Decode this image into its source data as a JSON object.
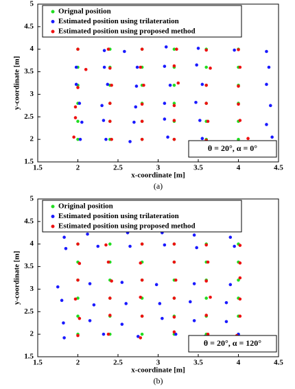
{
  "chart_data": [
    {
      "type": "scatter",
      "caption": "(a)",
      "x_label": "x-coordinate [m]",
      "y_label": "y-coordinate [m]",
      "annotation": "θ = 20°, α = 0°",
      "xlim": [
        1.5,
        4.5
      ],
      "ylim": [
        1.5,
        5
      ],
      "xticks": [
        1.5,
        2,
        2.5,
        3,
        3.5,
        4,
        4.5
      ],
      "yticks": [
        1.5,
        2,
        2.5,
        3,
        3.5,
        4,
        4.5,
        5
      ],
      "grid": false,
      "legend": "upper-left",
      "series": [
        {
          "name": "Orignal position",
          "color": "#22dd22",
          "x": [
            2,
            2.4,
            2.8,
            3.2,
            3.6,
            4,
            2,
            2.4,
            2.8,
            3.2,
            3.6,
            4,
            2,
            2.4,
            2.8,
            3.2,
            3.6,
            4,
            2,
            2.4,
            2.8,
            3.2,
            3.6,
            4,
            2,
            2.4,
            2.8,
            3.2,
            3.6,
            4,
            2,
            2.4,
            2.8,
            3.2,
            3.6,
            4
          ],
          "values": [
            4,
            4,
            4,
            4,
            4,
            4,
            3.6,
            3.6,
            3.6,
            3.6,
            3.6,
            3.6,
            3.2,
            3.2,
            3.2,
            3.2,
            3.2,
            3.2,
            2.8,
            2.8,
            2.8,
            2.8,
            2.8,
            2.8,
            2.4,
            2.4,
            2.4,
            2.4,
            2.4,
            2.4,
            2,
            2,
            2,
            2,
            2,
            2
          ]
        },
        {
          "name": "Estimated position using trilateration",
          "color": "#1a1aff",
          "x": [
            2.33,
            2.58,
            3.1,
            3.5,
            3.95,
            4.35,
            1.98,
            2.33,
            2.74,
            3.08,
            3.48,
            4.38,
            1.98,
            2.37,
            2.73,
            3.15,
            3.55,
            4.35,
            2.02,
            2.3,
            2.72,
            3.08,
            3.47,
            4.4,
            2.05,
            2.32,
            2.7,
            3.08,
            3.52,
            4.35,
            2.03,
            2.35,
            2.65,
            3.12,
            3.55,
            4.42
          ],
          "values": [
            3.97,
            3.95,
            4.05,
            4.02,
            3.98,
            3.95,
            3.6,
            3.6,
            3.6,
            3.62,
            3.65,
            3.6,
            3.22,
            3.22,
            3.18,
            3.2,
            3.22,
            3.22,
            2.8,
            2.75,
            2.72,
            2.8,
            2.82,
            2.75,
            2.38,
            2.42,
            2.38,
            2.45,
            2.42,
            2.33,
            2,
            2,
            1.95,
            2.05,
            2.02,
            2.05
          ]
        },
        {
          "name": "Estimated position using proposed method",
          "color": "#ee1111",
          "x": [
            2,
            2.38,
            2.8,
            3.23,
            3.6,
            4,
            2.1,
            2.4,
            2.78,
            3.2,
            3.65,
            4.02,
            2,
            2.42,
            2.82,
            3.25,
            3.6,
            4,
            1.97,
            2.4,
            2.8,
            3.2,
            3.6,
            4,
            1.97,
            2.4,
            2.8,
            3.2,
            3.62,
            4.02,
            1.95,
            2.42,
            2.8,
            3.2,
            3.6,
            4.12
          ],
          "values": [
            4,
            4,
            4,
            4,
            3.98,
            3.99,
            3.55,
            3.58,
            3.6,
            3.63,
            3.58,
            3.6,
            3.15,
            3.2,
            3.2,
            3.25,
            3.2,
            3.18,
            2.72,
            2.8,
            2.78,
            2.75,
            2.8,
            2.78,
            2.48,
            2.4,
            2.4,
            2.42,
            2.4,
            2.42,
            2.05,
            2,
            2,
            2,
            1.98,
            2.02
          ]
        }
      ]
    },
    {
      "type": "scatter",
      "caption": "(b)",
      "x_label": "x-coordinate [m]",
      "y_label": "y-coordinate [m]",
      "annotation": "θ = 20°, α = 120°",
      "xlim": [
        1.5,
        4.5
      ],
      "ylim": [
        1.5,
        5
      ],
      "xticks": [
        1.5,
        2,
        2.5,
        3,
        3.5,
        4,
        4.5
      ],
      "yticks": [
        1.5,
        2,
        2.5,
        3,
        3.5,
        4,
        4.5,
        5
      ],
      "grid": false,
      "legend": "upper-left",
      "series": [
        {
          "name": "Original position",
          "color": "#22dd22",
          "x": [
            2,
            2.4,
            2.8,
            3.2,
            3.6,
            4,
            2,
            2.4,
            2.8,
            3.2,
            3.6,
            4,
            2,
            2.4,
            2.8,
            3.2,
            3.6,
            4,
            2,
            2.4,
            2.8,
            3.2,
            3.6,
            4,
            2,
            2.4,
            2.8,
            3.2,
            3.6,
            4,
            2,
            2.4,
            2.8,
            3.2,
            3.6,
            4
          ],
          "values": [
            4,
            4,
            4,
            4,
            4,
            4,
            3.6,
            3.6,
            3.6,
            3.6,
            3.6,
            3.6,
            3.2,
            3.2,
            3.2,
            3.2,
            3.2,
            3.2,
            2.8,
            2.8,
            2.8,
            2.8,
            2.8,
            2.8,
            2.4,
            2.4,
            2.4,
            2.4,
            2.4,
            2.4,
            2,
            2,
            2,
            2,
            2,
            2
          ]
        },
        {
          "name": "Estimated position using trilateration",
          "color": "#1a1aff",
          "x": [
            1.83,
            2.12,
            2.62,
            3.05,
            3.45,
            3.9,
            1.85,
            2.25,
            2.65,
            3.08,
            3.48,
            3.95,
            1.75,
            2.15,
            2.55,
            2.98,
            3.45,
            3.9,
            1.8,
            2.2,
            2.6,
            3.02,
            3.4,
            3.85,
            1.82,
            2.15,
            2.55,
            3.05,
            3.45,
            3.85,
            1.83,
            2.32,
            2.75,
            3.22,
            3.58,
            4
          ],
          "values": [
            4.15,
            4.22,
            4.25,
            4.25,
            4.2,
            4.15,
            3.9,
            3.95,
            3.95,
            3.98,
            3.92,
            3.95,
            3.05,
            3.12,
            3.15,
            3.1,
            3.12,
            3.1,
            2.75,
            2.65,
            2.68,
            2.68,
            2.72,
            2.7,
            2.25,
            2.3,
            2.22,
            2.35,
            2.3,
            2.28,
            1.92,
            2,
            1.95,
            2,
            1.95,
            2
          ]
        },
        {
          "name": "Estimated position using proposed method",
          "color": "#ee1111",
          "x": [
            2,
            2.35,
            2.8,
            3.2,
            3.6,
            4.02,
            2.02,
            2.38,
            2.78,
            3.2,
            3.62,
            4.02,
            2,
            2.42,
            2.8,
            3.22,
            3.6,
            4.02,
            1.97,
            2.4,
            2.78,
            3.2,
            3.65,
            4.02,
            2.02,
            2.4,
            2.8,
            3.2,
            3.6,
            4.02,
            2,
            2.38,
            2.78,
            3.2,
            3.62,
            3.98
          ],
          "values": [
            4,
            3.98,
            4,
            4,
            3.98,
            3.97,
            3.57,
            3.6,
            3.58,
            3.6,
            3.6,
            3.58,
            3.2,
            3.18,
            3.2,
            3.2,
            3.18,
            3.25,
            2.78,
            2.8,
            2.82,
            2.8,
            2.82,
            2.78,
            2.35,
            2.42,
            2.4,
            2.38,
            2.42,
            2.4,
            1.97,
            2,
            1.92,
            2.05,
            2,
            1.97
          ]
        }
      ]
    }
  ]
}
